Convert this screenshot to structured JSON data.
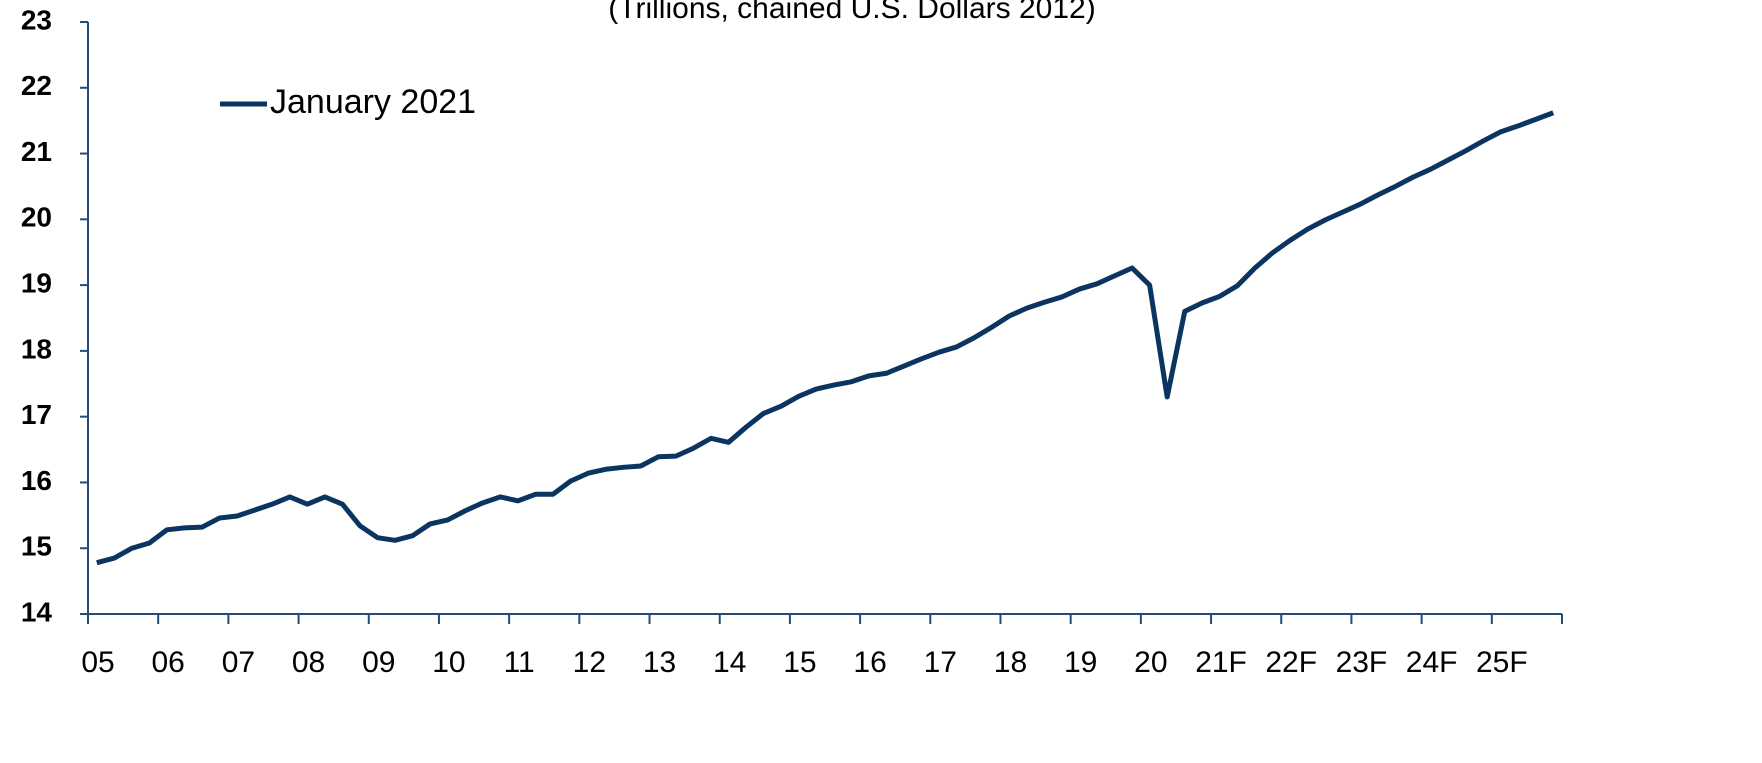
{
  "chart_data": {
    "type": "line",
    "subtitle": "(Trillions, chained U.S. Dollars 2012)",
    "categories": [
      "05",
      null,
      null,
      null,
      "06",
      null,
      null,
      null,
      "07",
      null,
      null,
      null,
      "08",
      null,
      null,
      null,
      "09",
      null,
      null,
      null,
      "10",
      null,
      null,
      null,
      "11",
      null,
      null,
      null,
      "12",
      null,
      null,
      null,
      "13",
      null,
      null,
      null,
      "14",
      null,
      null,
      null,
      "15",
      null,
      null,
      null,
      "16",
      null,
      null,
      null,
      "17",
      null,
      null,
      null,
      "18",
      null,
      null,
      null,
      "19",
      null,
      null,
      null,
      "20",
      null,
      null,
      null,
      "21F",
      null,
      null,
      null,
      "22F",
      null,
      null,
      null,
      "23F",
      null,
      null,
      null,
      "24F",
      null,
      null,
      null,
      "25F",
      null,
      null,
      null
    ],
    "series": [
      {
        "name": "January 2021",
        "color": "#0b3560",
        "values": [
          14.78,
          14.85,
          15.0,
          15.08,
          15.28,
          15.31,
          15.32,
          15.46,
          15.49,
          15.58,
          15.67,
          15.78,
          15.67,
          15.78,
          15.67,
          15.34,
          15.16,
          15.12,
          15.19,
          15.37,
          15.43,
          15.57,
          15.69,
          15.78,
          15.72,
          15.82,
          15.82,
          16.02,
          16.14,
          16.2,
          16.23,
          16.25,
          16.39,
          16.4,
          16.52,
          16.67,
          16.61,
          16.84,
          17.05,
          17.16,
          17.31,
          17.42,
          17.48,
          17.53,
          17.62,
          17.66,
          17.77,
          17.88,
          17.98,
          18.06,
          18.2,
          18.36,
          18.53,
          18.65,
          18.74,
          18.82,
          18.94,
          19.02,
          19.14,
          19.26,
          19.0,
          17.3,
          18.6,
          18.73,
          18.83,
          18.99,
          19.26,
          19.49,
          19.68,
          19.85,
          19.99,
          20.11,
          20.23,
          20.37,
          20.5,
          20.64,
          20.76,
          20.9,
          21.04,
          21.19,
          21.33,
          21.42,
          21.52,
          21.62
        ]
      }
    ],
    "ylim": [
      14,
      23
    ],
    "yticks": [
      14,
      15,
      16,
      17,
      18,
      19,
      20,
      21,
      22,
      23
    ],
    "grid": false,
    "legend": "top-left"
  }
}
